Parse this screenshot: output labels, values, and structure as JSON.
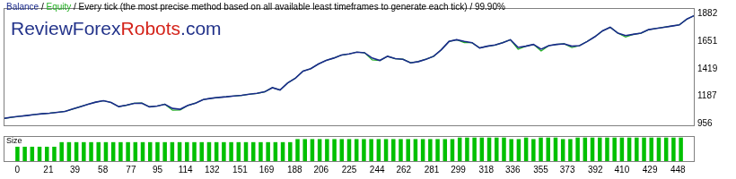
{
  "chart_data": [
    {
      "type": "line",
      "title": "Balance / Equity / Every tick (the most precise method based on all available least timeframes to generate each tick) / 99.90%",
      "annotations": [
        {
          "text": "ReviewForex",
          "color": "#23338a"
        },
        {
          "text": "Robots",
          "color": "#d4231a"
        },
        {
          "text": ".com",
          "color": "#23338a"
        }
      ],
      "x": [
        0,
        5,
        10,
        15,
        20,
        25,
        30,
        35,
        40,
        45,
        50,
        55,
        60,
        65,
        70,
        75,
        80,
        85,
        90,
        95,
        100,
        105,
        110,
        115,
        120,
        125,
        130,
        135,
        140,
        145,
        150,
        155,
        160,
        165,
        170,
        175,
        180,
        185,
        190,
        195,
        200,
        205,
        210,
        215,
        220,
        225,
        230,
        235,
        240,
        245,
        250,
        255,
        260,
        265,
        270,
        275,
        280,
        285,
        290,
        295,
        300,
        305,
        310,
        315,
        320,
        325,
        330,
        335,
        340,
        345,
        350,
        355,
        360,
        365,
        370,
        375,
        380,
        385,
        390,
        395,
        400,
        405,
        410,
        415,
        420,
        425,
        430,
        435,
        440,
        445,
        450
      ],
      "series": [
        {
          "name": "Balance",
          "color": "#1a2a8c",
          "values": [
            1000,
            1010,
            1018,
            1025,
            1033,
            1040,
            1045,
            1052,
            1060,
            1080,
            1100,
            1120,
            1138,
            1150,
            1135,
            1100,
            1112,
            1128,
            1130,
            1098,
            1105,
            1120,
            1085,
            1078,
            1110,
            1130,
            1160,
            1170,
            1178,
            1183,
            1190,
            1195,
            1205,
            1212,
            1225,
            1260,
            1240,
            1300,
            1340,
            1400,
            1420,
            1460,
            1490,
            1510,
            1535,
            1545,
            1560,
            1555,
            1510,
            1490,
            1525,
            1505,
            1500,
            1470,
            1480,
            1500,
            1525,
            1580,
            1650,
            1665,
            1650,
            1640,
            1595,
            1610,
            1620,
            1640,
            1665,
            1600,
            1610,
            1625,
            1585,
            1615,
            1625,
            1630,
            1610,
            1615,
            1650,
            1690,
            1740,
            1770,
            1720,
            1700,
            1710,
            1720,
            1750,
            1760,
            1770,
            1780,
            1790,
            1840,
            1870
          ]
        },
        {
          "name": "Equity",
          "color": "#22b022",
          "values": [
            1000,
            1010,
            1018,
            1025,
            1033,
            1040,
            1045,
            1052,
            1060,
            1080,
            1100,
            1120,
            1138,
            1150,
            1135,
            1100,
            1112,
            1128,
            1130,
            1098,
            1105,
            1120,
            1070,
            1072,
            1110,
            1130,
            1160,
            1170,
            1178,
            1183,
            1190,
            1195,
            1205,
            1212,
            1225,
            1260,
            1240,
            1300,
            1340,
            1400,
            1420,
            1460,
            1490,
            1510,
            1535,
            1545,
            1560,
            1555,
            1495,
            1490,
            1525,
            1505,
            1500,
            1470,
            1480,
            1500,
            1525,
            1580,
            1650,
            1665,
            1640,
            1640,
            1595,
            1610,
            1620,
            1640,
            1665,
            1585,
            1610,
            1625,
            1570,
            1615,
            1625,
            1630,
            1598,
            1615,
            1650,
            1690,
            1740,
            1770,
            1720,
            1688,
            1710,
            1720,
            1750,
            1760,
            1770,
            1780,
            1790,
            1840,
            1870
          ]
        }
      ],
      "xlim": [
        0,
        450
      ],
      "ylim": [
        935,
        1932
      ],
      "yticks": [
        956,
        1187,
        1419,
        1651,
        1882
      ],
      "grid": false,
      "tick_labels": "y"
    },
    {
      "type": "bar",
      "title": "Size",
      "x": [
        0,
        5,
        10,
        15,
        20,
        25,
        30,
        35,
        40,
        45,
        50,
        55,
        60,
        65,
        70,
        75,
        80,
        85,
        90,
        95,
        100,
        105,
        110,
        115,
        120,
        125,
        130,
        135,
        140,
        145,
        150,
        155,
        160,
        165,
        170,
        175,
        180,
        185,
        190,
        195,
        200,
        205,
        210,
        215,
        220,
        225,
        230,
        235,
        240,
        245,
        250,
        255,
        260,
        265,
        270,
        275,
        280,
        285,
        290,
        295,
        300,
        305,
        310,
        315,
        320,
        325,
        330,
        335,
        340,
        345,
        350,
        355,
        360,
        365,
        370,
        375,
        380,
        385,
        390,
        395,
        400,
        405,
        410,
        415,
        420,
        425,
        430,
        435,
        440,
        445,
        450
      ],
      "values": [
        0.1,
        0.1,
        0.1,
        0.1,
        0.1,
        0.1,
        0.13,
        0.13,
        0.13,
        0.13,
        0.13,
        0.13,
        0.13,
        0.13,
        0.13,
        0.13,
        0.13,
        0.13,
        0.13,
        0.13,
        0.13,
        0.13,
        0.13,
        0.13,
        0.13,
        0.13,
        0.13,
        0.13,
        0.13,
        0.13,
        0.13,
        0.13,
        0.13,
        0.13,
        0.13,
        0.13,
        0.13,
        0.13,
        0.15,
        0.15,
        0.15,
        0.15,
        0.15,
        0.15,
        0.15,
        0.15,
        0.15,
        0.15,
        0.15,
        0.15,
        0.15,
        0.15,
        0.15,
        0.15,
        0.15,
        0.15,
        0.15,
        0.15,
        0.15,
        0.15,
        0.16,
        0.16,
        0.16,
        0.16,
        0.16,
        0.16,
        0.16,
        0.15,
        0.15,
        0.16,
        0.15,
        0.16,
        0.16,
        0.16,
        0.15,
        0.15,
        0.16,
        0.16,
        0.16,
        0.16,
        0.16,
        0.16,
        0.16,
        0.16,
        0.16,
        0.16,
        0.16,
        0.16,
        0.16,
        0.16,
        0.16
      ],
      "color": "#00c000",
      "xlim": [
        0,
        450
      ],
      "ylim": [
        0,
        0.17
      ],
      "xticks": [
        0,
        21,
        39,
        58,
        77,
        95,
        114,
        132,
        151,
        169,
        188,
        206,
        225,
        244,
        262,
        281,
        299,
        318,
        336,
        355,
        373,
        392,
        410,
        429,
        448
      ],
      "grid": false,
      "tick_labels": "x"
    }
  ]
}
